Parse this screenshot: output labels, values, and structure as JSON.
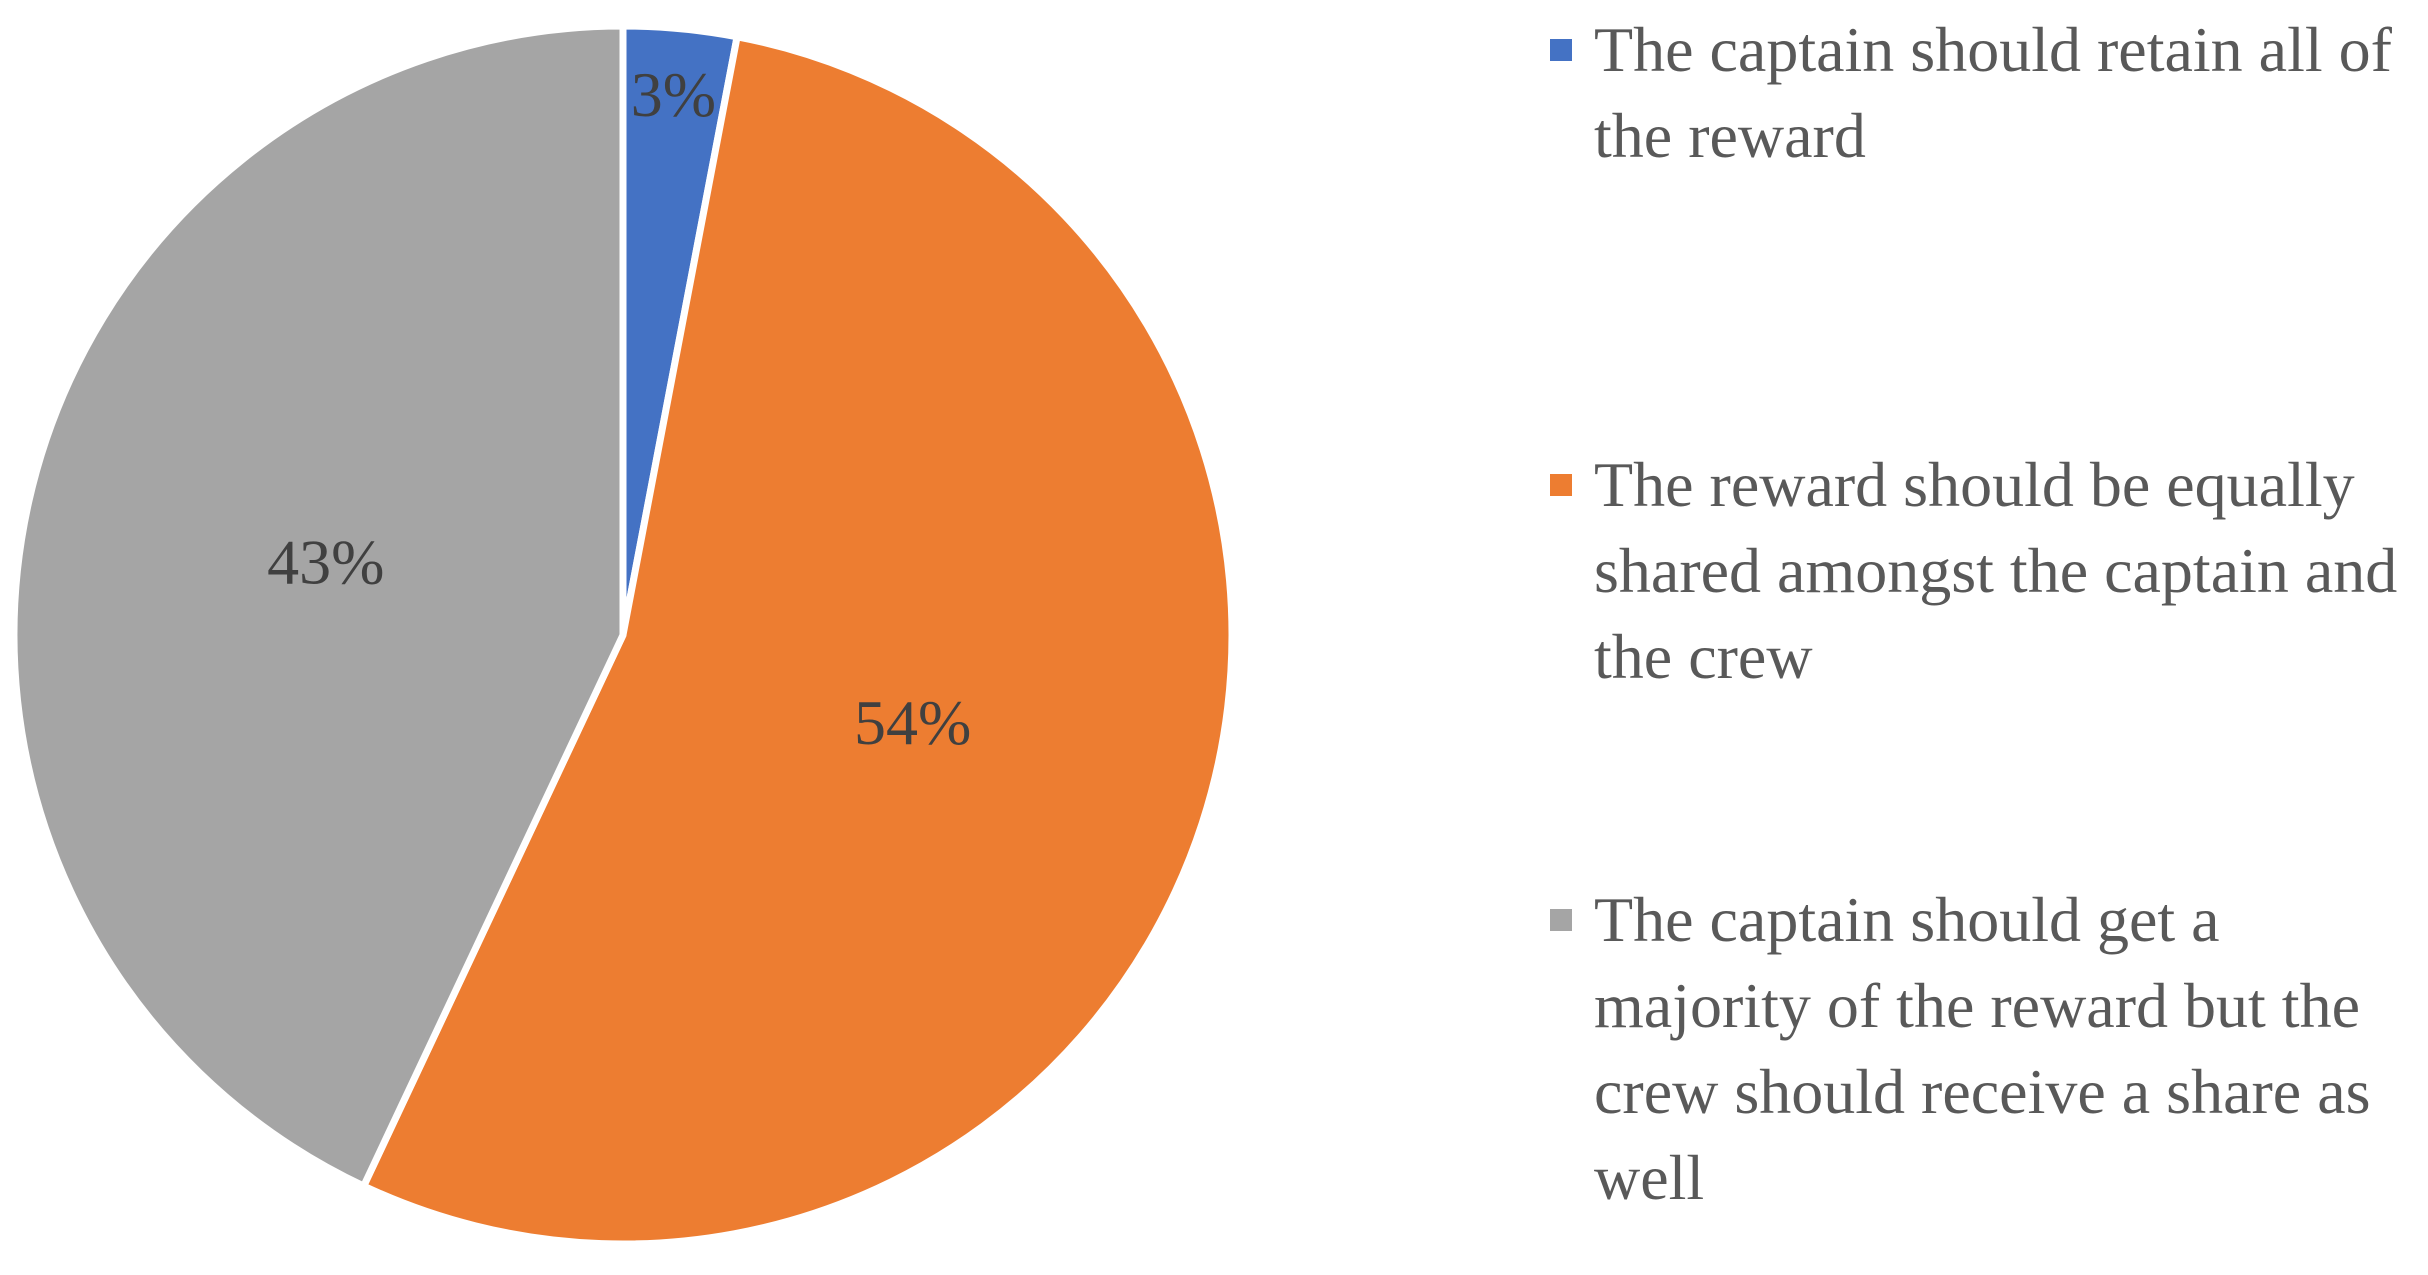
{
  "chart_data": {
    "type": "pie",
    "categories": [
      "The captain should retain all of the reward",
      "The reward should be equally shared amongst the captain and the crew",
      "The captain should get a majority of the reward but the crew should receive a share as well"
    ],
    "values": [
      3,
      54,
      43
    ],
    "value_labels": [
      "3%",
      "54%",
      "43%"
    ],
    "colors": [
      "#4472c4",
      "#ed7d31",
      "#a5a5a5"
    ],
    "legend": "right"
  }
}
